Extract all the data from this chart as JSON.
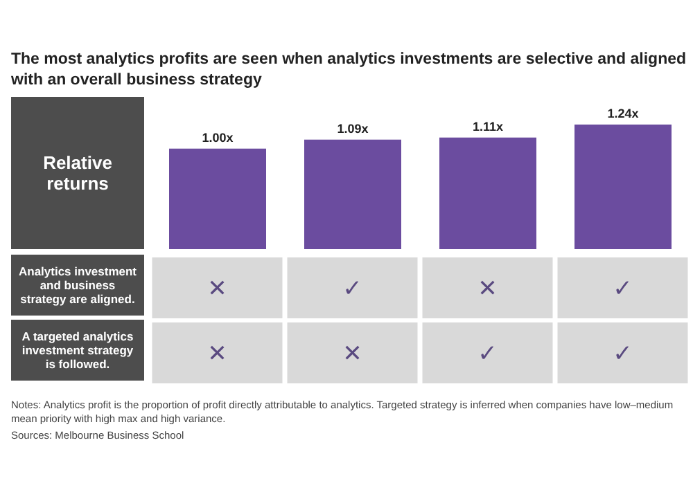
{
  "chart_data": {
    "type": "bar",
    "title": "The most analytics profits are seen when analytics investments are selective and aligned with an overall business strategy",
    "ylabel": "Relative returns",
    "categories": [
      "✕\n✕",
      "✓\n✕",
      "✕\n✓",
      "✓\n✓"
    ],
    "values": [
      1.0,
      1.09,
      1.11,
      1.24
    ],
    "value_labels": [
      "1.00x",
      "1.09x",
      "1.11x",
      "1.24x"
    ],
    "color": "#6b4c9f",
    "annotations": [
      "Analytics investment and business strategy are aligned.",
      "A targeted analytics investment strategy is followed.",
      "Notes: Analytics profit is the proportion of profit directly attributable to analytics. Targeted strategy is inferred when companies have low–medium mean priority with high max and high variance.",
      "Sources: Melbourne Business School"
    ]
  }
}
